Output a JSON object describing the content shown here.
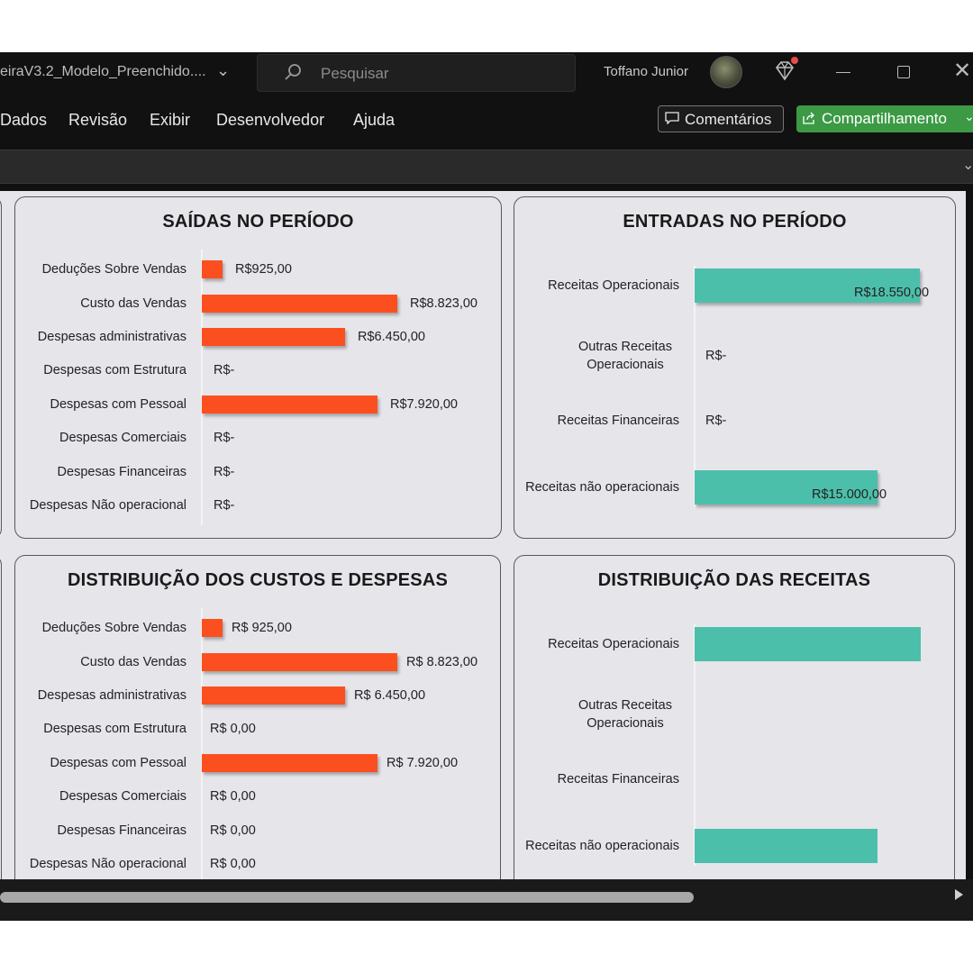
{
  "titlebar": {
    "doc_title": "eiraV3.2_Modelo_Preenchido....",
    "search_placeholder": "Pesquisar",
    "user_name": "Toffano Junior"
  },
  "ribbon": {
    "menu": [
      "Dados",
      "Revisão",
      "Exibir",
      "Desenvolvedor",
      "Ajuda"
    ],
    "comments_label": "Comentários",
    "share_label": "Compartilhamento"
  },
  "colors": {
    "expense_bar": "#fc4f1f",
    "income_bar": "#4cbfab",
    "share_button": "#3c9a45"
  },
  "chart_data": [
    {
      "type": "bar",
      "orientation": "horizontal",
      "title": "SAÍDAS NO PERÍODO",
      "categories": [
        "Deduções Sobre Vendas",
        "Custo das Vendas",
        "Despesas administrativas",
        "Despesas com Estrutura",
        "Despesas com Pessoal",
        "Despesas Comerciais",
        "Despesas Financeiras",
        "Despesas Não operacional"
      ],
      "values": [
        925,
        8823,
        6450,
        0,
        7920,
        0,
        0,
        0
      ],
      "value_labels": [
        "R$925,00",
        "R$8.823,00",
        "R$6.450,00",
        "R$-",
        "R$7.920,00",
        "R$-",
        "R$-",
        "R$-"
      ],
      "xlim": [
        0,
        10000
      ]
    },
    {
      "type": "bar",
      "orientation": "horizontal",
      "title": "ENTRADAS NO PERÍODO",
      "categories": [
        "Receitas Operacionais",
        "Outras Receitas Operacionais",
        "Receitas Financeiras",
        "Receitas não operacionais"
      ],
      "values": [
        18550,
        0,
        0,
        15000
      ],
      "value_labels": [
        "R$18.550,00",
        "R$-",
        "R$-",
        "R$15.000,00"
      ],
      "xlim": [
        0,
        20000
      ]
    },
    {
      "type": "bar",
      "orientation": "horizontal",
      "title": "DISTRIBUIÇÃO DOS CUSTOS E DESPESAS",
      "categories": [
        "Deduções Sobre Vendas",
        "Custo das Vendas",
        "Despesas administrativas",
        "Despesas com Estrutura",
        "Despesas com Pessoal",
        "Despesas Comerciais",
        "Despesas Financeiras",
        "Despesas Não operacional"
      ],
      "values": [
        925,
        8823,
        6450,
        0,
        7920,
        0,
        0,
        0
      ],
      "value_labels": [
        "R$ 925,00",
        "R$ 8.823,00",
        "R$ 6.450,00",
        "R$ 0,00",
        "R$ 7.920,00",
        "R$ 0,00",
        "R$ 0,00",
        "R$ 0,00"
      ],
      "xlim": [
        0,
        10000
      ]
    },
    {
      "type": "bar",
      "orientation": "horizontal",
      "title": "DISTRIBUIÇÃO DAS RECEITAS",
      "categories": [
        "Receitas Operacionais",
        "Outras Receitas Operacionais",
        "Receitas Financeiras",
        "Receitas não operacionais"
      ],
      "values": [
        18550,
        0,
        0,
        15000
      ],
      "value_labels": [
        "",
        "",
        "",
        ""
      ],
      "xlim": [
        0,
        20000
      ]
    }
  ]
}
